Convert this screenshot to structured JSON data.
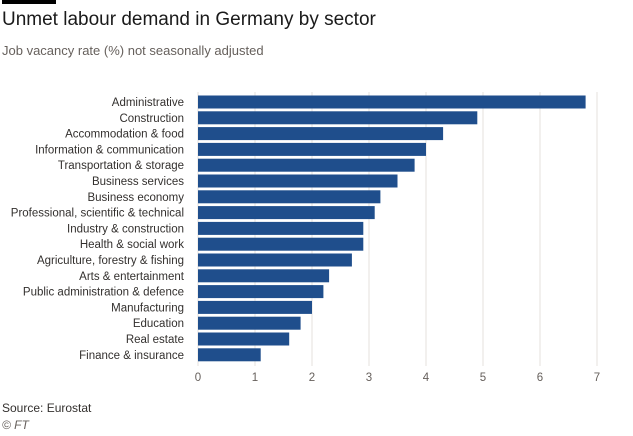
{
  "chart_data": {
    "type": "bar",
    "orientation": "horizontal",
    "title": "Unmet labour demand in Germany by sector",
    "subtitle": "Job vacancy rate (%) not seasonally adjusted",
    "categories": [
      "Administrative",
      "Construction",
      "Accommodation & food",
      "Information & communication",
      "Transportation & storage",
      "Business services",
      "Business economy",
      "Professional, scientific & technical",
      "Industry & construction",
      "Health & social work",
      "Agriculture, forestry & fishing",
      "Arts & entertainment",
      "Public administration & defence",
      "Manufacturing",
      "Education",
      "Real estate",
      "Finance & insurance"
    ],
    "values": [
      6.8,
      4.9,
      4.3,
      4.0,
      3.8,
      3.5,
      3.2,
      3.1,
      2.9,
      2.9,
      2.7,
      2.3,
      2.2,
      2.0,
      1.8,
      1.6,
      1.1
    ],
    "xlim": [
      0,
      7
    ],
    "xticks": [
      0,
      1,
      2,
      3,
      4,
      5,
      6,
      7
    ],
    "grid": true,
    "legend": "none",
    "bar_color": "#1f4e8c",
    "grid_color": "#e6e2de"
  },
  "source": "Source: Eurostat",
  "copyright": "© FT"
}
